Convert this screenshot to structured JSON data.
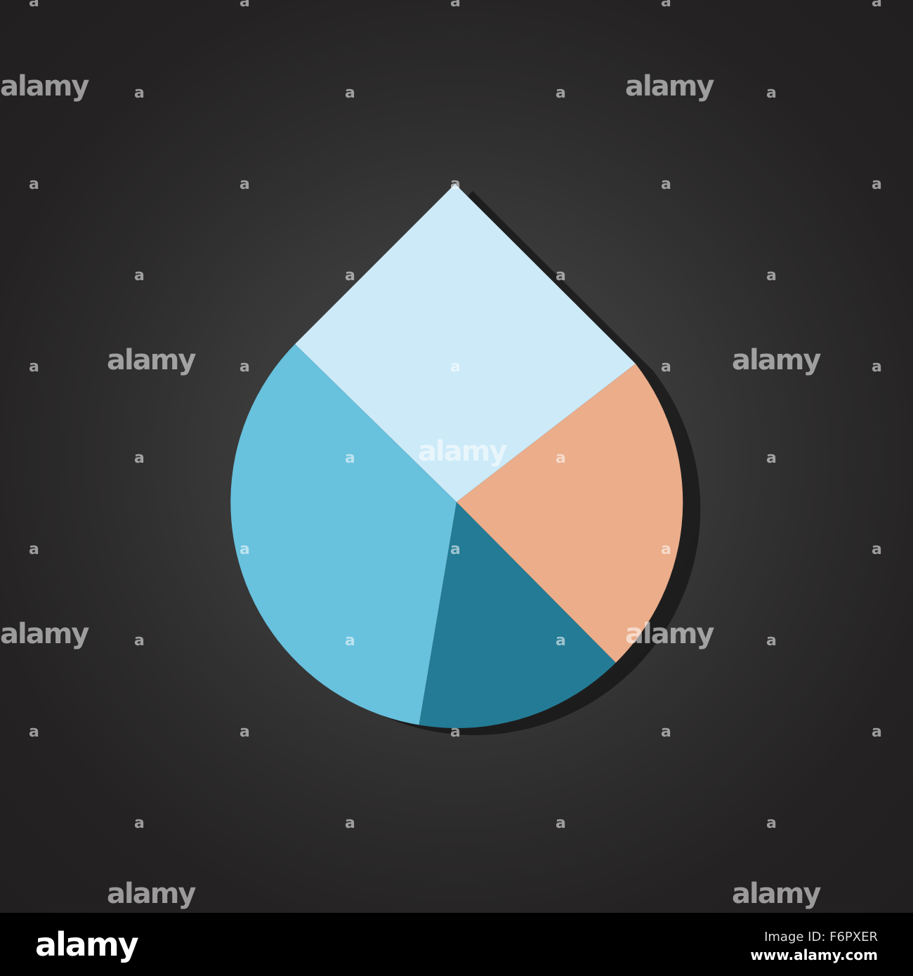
{
  "graphic": {
    "shape": "water-drop pie chart",
    "colors": {
      "top": "#cdeaf9",
      "left": "#68c1dd",
      "bottom": "#237b95",
      "right": "#ebad8a",
      "shadow": "#000000"
    }
  },
  "watermark": {
    "text": "alamy",
    "glyph": "a"
  },
  "footer": {
    "logo": "alamy",
    "image_id": "Image ID: F6PXER",
    "site": "www.alamy.com"
  }
}
